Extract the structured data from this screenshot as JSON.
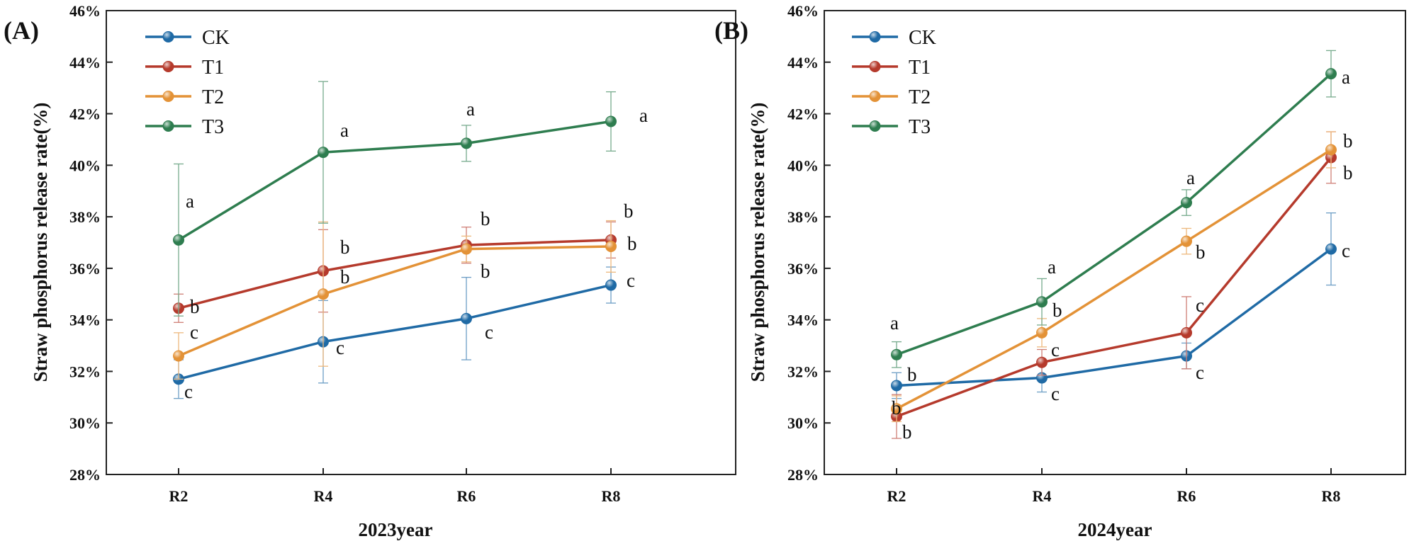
{
  "chart_data": [
    {
      "type": "line",
      "panel_label": "(A)",
      "title": "",
      "xlabel": "2023year",
      "ylabel": "Straw phosphorus release rate(%)",
      "categories": [
        "R2",
        "R4",
        "R6",
        "R8"
      ],
      "ylim": [
        28,
        46
      ],
      "yticks": [
        28,
        30,
        32,
        34,
        36,
        38,
        40,
        42,
        44,
        46
      ],
      "ytick_labels": [
        "28%",
        "30%",
        "32%",
        "34%",
        "36%",
        "38%",
        "40%",
        "42%",
        "44%",
        "46%"
      ],
      "grid": false,
      "legend_position": "top-left",
      "series": [
        {
          "name": "CK",
          "color": "#1f6aa5",
          "values": [
            31.7,
            33.15,
            34.05,
            35.35
          ],
          "errors": [
            0.75,
            1.6,
            1.6,
            0.7
          ],
          "letters": [
            "c",
            "c",
            "c",
            "c"
          ]
        },
        {
          "name": "T1",
          "color": "#b53a2c",
          "values": [
            34.45,
            35.9,
            36.9,
            37.1
          ],
          "errors": [
            0.55,
            1.6,
            0.7,
            0.7
          ],
          "letters": [
            "b",
            "b",
            "b",
            "b"
          ]
        },
        {
          "name": "T2",
          "color": "#e39237",
          "values": [
            32.6,
            35.0,
            36.75,
            36.85
          ],
          "errors": [
            0.9,
            2.8,
            0.5,
            1.0
          ],
          "letters": [
            "c",
            "b",
            "b",
            "b"
          ]
        },
        {
          "name": "T3",
          "color": "#2e7d4f",
          "values": [
            37.1,
            40.5,
            40.85,
            41.7
          ],
          "errors": [
            2.95,
            2.75,
            0.7,
            1.15
          ],
          "letters": [
            "a",
            "a",
            "a",
            "a"
          ]
        }
      ]
    },
    {
      "type": "line",
      "panel_label": "(B)",
      "title": "",
      "xlabel": "2024year",
      "ylabel": "Straw phosphorus release rate(%)",
      "categories": [
        "R2",
        "R4",
        "R6",
        "R8"
      ],
      "ylim": [
        28,
        46
      ],
      "yticks": [
        28,
        30,
        32,
        34,
        36,
        38,
        40,
        42,
        44,
        46
      ],
      "ytick_labels": [
        "28%",
        "30%",
        "32%",
        "34%",
        "36%",
        "38%",
        "40%",
        "42%",
        "44%",
        "46%"
      ],
      "grid": false,
      "legend_position": "top-left",
      "series": [
        {
          "name": "CK",
          "color": "#1f6aa5",
          "values": [
            31.45,
            31.75,
            32.6,
            36.75
          ],
          "errors": [
            0.5,
            0.55,
            0.5,
            1.4
          ],
          "letters": [
            "b",
            "c",
            "c",
            "c"
          ]
        },
        {
          "name": "T1",
          "color": "#b53a2c",
          "values": [
            30.25,
            32.35,
            33.5,
            40.3
          ],
          "errors": [
            0.85,
            0.5,
            1.4,
            1.0
          ],
          "letters": [
            "b",
            "c",
            "c",
            "b"
          ]
        },
        {
          "name": "T2",
          "color": "#e39237",
          "values": [
            30.55,
            33.5,
            37.05,
            40.6
          ],
          "errors": [
            0.5,
            0.55,
            0.5,
            0.7
          ],
          "letters": [
            "b",
            "b",
            "b",
            "b"
          ]
        },
        {
          "name": "T3",
          "color": "#2e7d4f",
          "values": [
            32.65,
            34.7,
            38.55,
            43.55
          ],
          "errors": [
            0.5,
            0.9,
            0.5,
            0.9
          ],
          "letters": [
            "a",
            "a",
            "a",
            "a"
          ]
        }
      ]
    }
  ]
}
